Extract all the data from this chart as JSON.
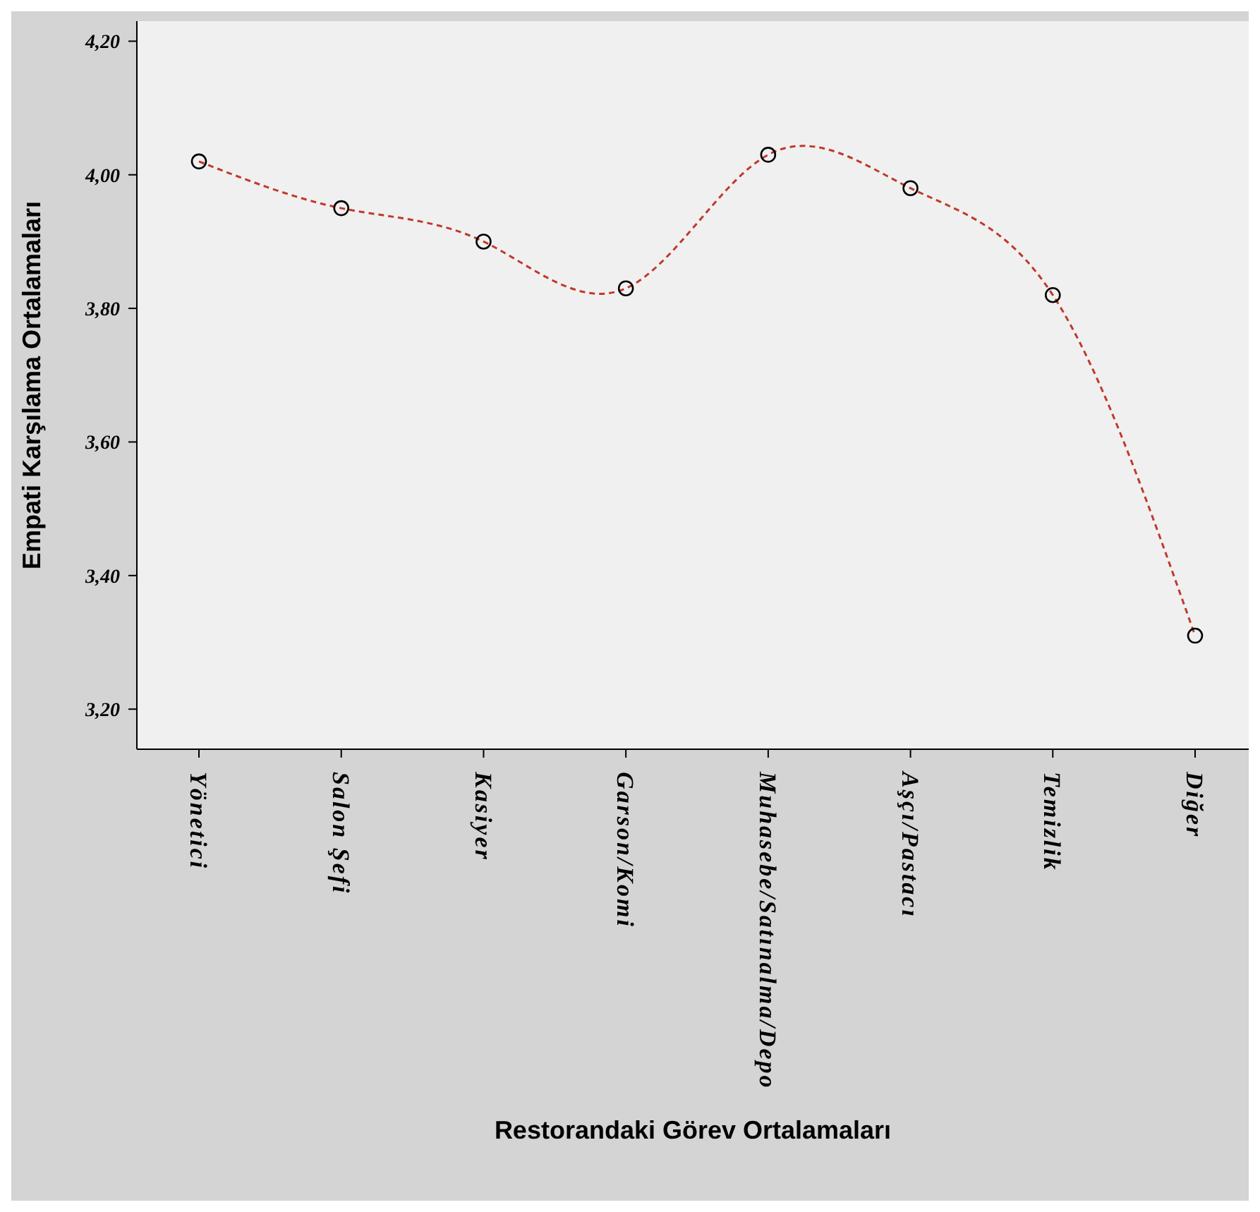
{
  "chart_data": {
    "type": "line",
    "xlabel": "Restorandaki Görev Ortalamaları",
    "ylabel": "Empati Karşılama Ortalamaları",
    "categories": [
      "Yönetici",
      "Salon Şefi",
      "Kasiyer",
      "Garson/Komi",
      "Muhasebe/Satınalma/Depo",
      "Aşçı/Pastacı",
      "Temizlik",
      "Diğer"
    ],
    "series": [
      {
        "color": "#c0392b",
        "values": [
          4.02,
          3.95,
          3.9,
          3.83,
          4.03,
          3.98,
          3.82,
          3.31
        ]
      }
    ],
    "ylim": [
      3.14,
      4.23
    ],
    "yticks": [
      {
        "value": 3.2,
        "label": "3,20"
      },
      {
        "value": 3.4,
        "label": "3,40"
      },
      {
        "value": 3.6,
        "label": "3,60"
      },
      {
        "value": 3.8,
        "label": "3,80"
      },
      {
        "value": 4.0,
        "label": "4,00"
      },
      {
        "value": 4.2,
        "label": "4,20"
      }
    ],
    "grid": false,
    "legend": false,
    "marker": "circle",
    "line_style": "dashed"
  }
}
